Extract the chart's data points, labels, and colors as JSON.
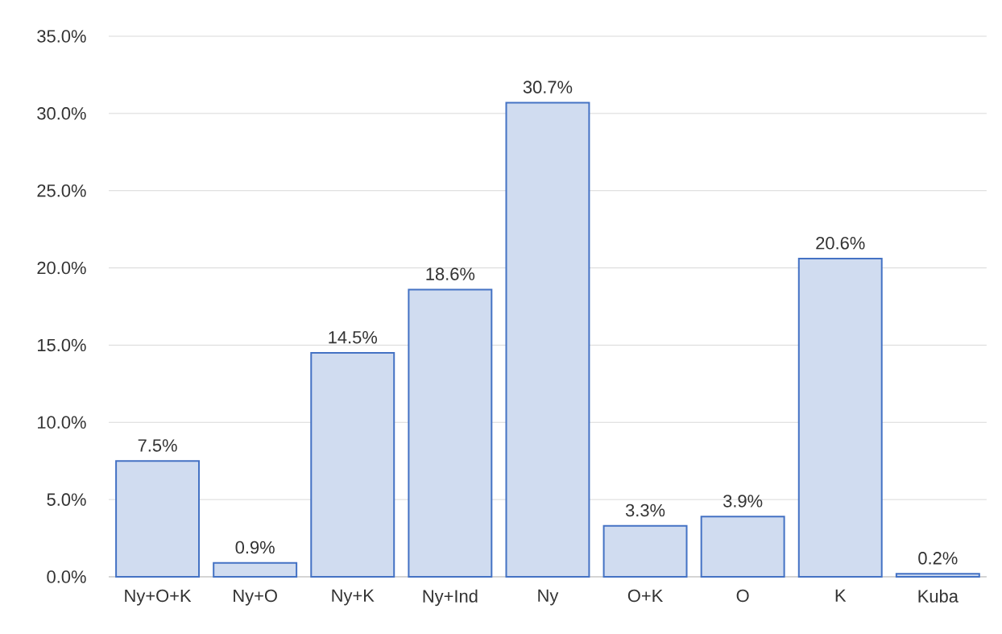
{
  "chart_data": {
    "type": "bar",
    "categories": [
      "Ny+O+K",
      "Ny+O",
      "Ny+K",
      "Ny+Ind",
      "Ny",
      "O+K",
      "O",
      "K",
      "Kuba"
    ],
    "values": [
      7.5,
      0.9,
      14.5,
      18.6,
      30.7,
      3.3,
      3.9,
      20.6,
      0.2
    ],
    "value_labels": [
      "7.5%",
      "0.9%",
      "14.5%",
      "18.6%",
      "30.7%",
      "3.3%",
      "3.9%",
      "20.6%",
      "0.2%"
    ],
    "color": "#4472c4",
    "ylim": [
      0,
      35
    ],
    "yticks": [
      {
        "value": 0,
        "label": "0.0%"
      },
      {
        "value": 5,
        "label": "5.0%"
      },
      {
        "value": 10,
        "label": "10.0%"
      },
      {
        "value": 15,
        "label": "15.0%"
      },
      {
        "value": 20,
        "label": "20.0%"
      },
      {
        "value": 25,
        "label": "25.0%"
      },
      {
        "value": 30,
        "label": "30.0%"
      },
      {
        "value": 35,
        "label": "35.0%"
      }
    ],
    "grid": "y"
  }
}
